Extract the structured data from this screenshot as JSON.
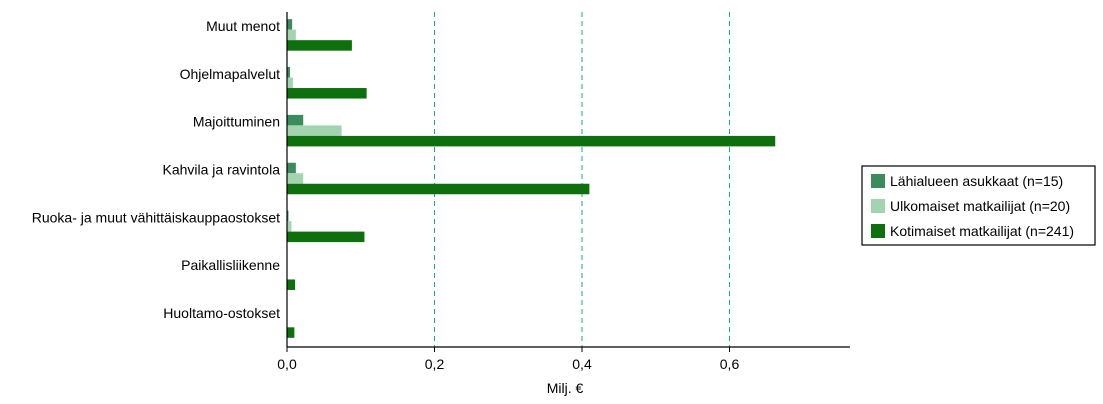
{
  "chart_data": {
    "type": "bar",
    "orientation": "horizontal",
    "categories": [
      "Muut menot",
      "Ohjelmapalvelut",
      "Majoittuminen",
      "Kahvila ja ravintola",
      "Ruoka- ja muut vähittäiskauppaostokset",
      "Paikallisliikenne",
      "Huoltamo-ostokset"
    ],
    "series": [
      {
        "name": "Lähialueen asukkaat (n=15)",
        "color": "#3a8c5c",
        "values": [
          0.007,
          0.004,
          0.022,
          0.012,
          0.002,
          0.0,
          0.0
        ]
      },
      {
        "name": "Ulkomaiset matkailijat (n=20)",
        "color": "#a3d4b0",
        "values": [
          0.012,
          0.008,
          0.074,
          0.022,
          0.006,
          0.0,
          0.0
        ]
      },
      {
        "name": "Kotimaiset matkailijat (n=241)",
        "color": "#0d700d",
        "values": [
          0.088,
          0.108,
          0.662,
          0.41,
          0.105,
          0.011,
          0.01
        ]
      }
    ],
    "xlabel": "Milj. €",
    "xlim": [
      0,
      0.76
    ],
    "xticks": [
      0,
      0.2,
      0.4,
      0.6
    ],
    "xtick_labels": [
      "0,0",
      "0,2",
      "0,4",
      "0,6"
    ],
    "grid": "vertical dashed",
    "grid_color": "#1aaa8a",
    "legend": "right"
  }
}
